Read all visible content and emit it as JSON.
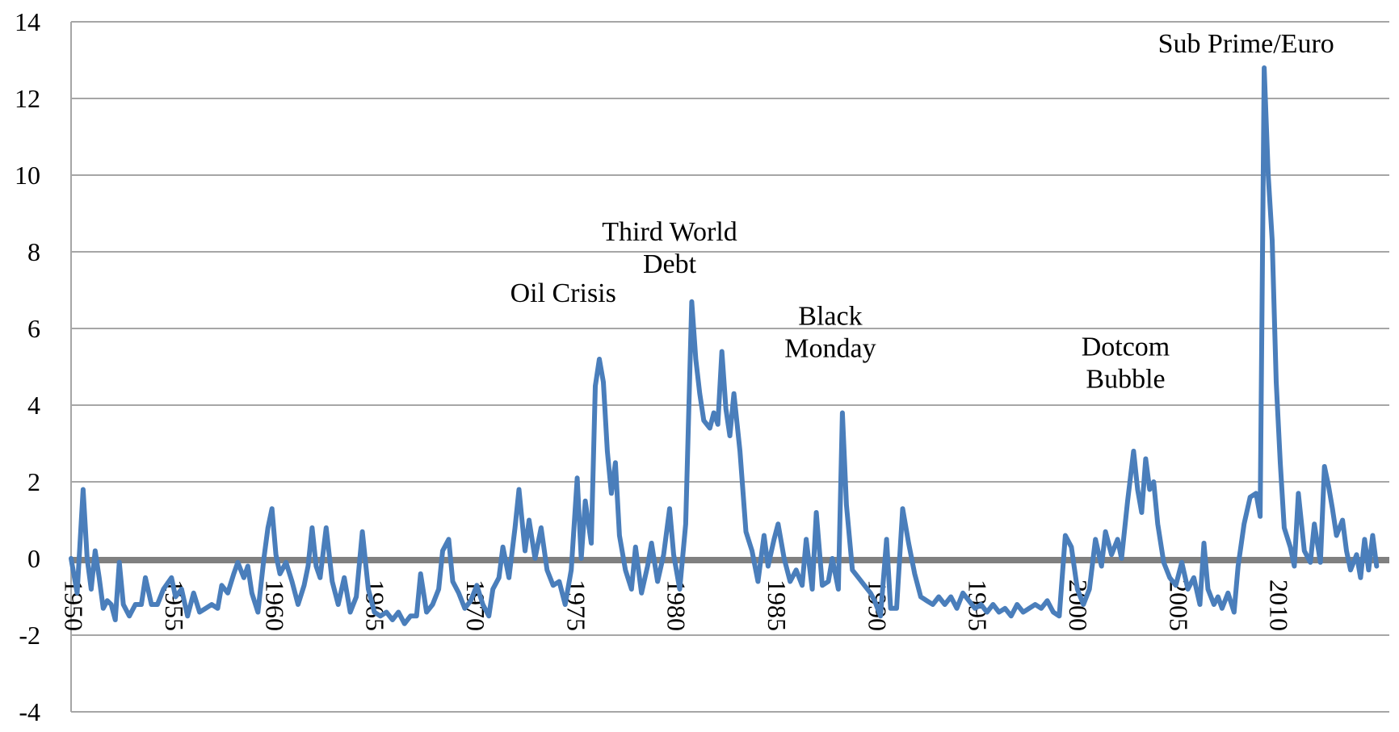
{
  "chart_data": {
    "type": "line",
    "title": "",
    "xlabel": "",
    "ylabel": "",
    "xlim": [
      1950,
      2015
    ],
    "ylim": [
      -4,
      14
    ],
    "grid": true,
    "legend": "none",
    "colors": {
      "series": "#4a7ebb",
      "zero_line": "#808080",
      "grid": "#a6a6a6"
    },
    "y_ticks": [
      "14",
      "12",
      "10",
      "8",
      "6",
      "4",
      "2",
      "0",
      "-2",
      "-4"
    ],
    "x_ticks": [
      "1950",
      "1955",
      "1960",
      "1965",
      "1970",
      "1975",
      "1980",
      "1985",
      "1990",
      "1995",
      "2000",
      "2005",
      "2010"
    ],
    "annotations": [
      {
        "lines": [
          "Oil Crisis"
        ],
        "x": 1974.5,
        "y": 6.7
      },
      {
        "lines": [
          "Third World",
          "Debt"
        ],
        "x": 1979.8,
        "y": 8.3
      },
      {
        "lines": [
          "Black",
          "Monday"
        ],
        "x": 1987.8,
        "y": 6.1
      },
      {
        "lines": [
          "Dotcom",
          "Bubble"
        ],
        "x": 2002.5,
        "y": 5.3
      },
      {
        "lines": [
          "Sub Prime/Euro"
        ],
        "x": 2008.5,
        "y": 13.2
      }
    ],
    "series": [
      {
        "values": [
          [
            1950.0,
            0.0
          ],
          [
            1950.3,
            -0.9
          ],
          [
            1950.6,
            1.8
          ],
          [
            1950.8,
            0.0
          ],
          [
            1951.0,
            -0.8
          ],
          [
            1951.2,
            0.2
          ],
          [
            1951.4,
            -0.5
          ],
          [
            1951.6,
            -1.3
          ],
          [
            1951.8,
            -1.1
          ],
          [
            1952.0,
            -1.2
          ],
          [
            1952.2,
            -1.6
          ],
          [
            1952.4,
            -0.1
          ],
          [
            1952.6,
            -1.2
          ],
          [
            1952.9,
            -1.5
          ],
          [
            1953.2,
            -1.2
          ],
          [
            1953.5,
            -1.2
          ],
          [
            1953.7,
            -0.5
          ],
          [
            1954.0,
            -1.2
          ],
          [
            1954.3,
            -1.2
          ],
          [
            1954.6,
            -0.8
          ],
          [
            1955.0,
            -0.5
          ],
          [
            1955.2,
            -1.0
          ],
          [
            1955.5,
            -0.8
          ],
          [
            1955.8,
            -1.5
          ],
          [
            1956.1,
            -0.9
          ],
          [
            1956.4,
            -1.4
          ],
          [
            1956.7,
            -1.3
          ],
          [
            1957.0,
            -1.2
          ],
          [
            1957.3,
            -1.3
          ],
          [
            1957.5,
            -0.7
          ],
          [
            1957.8,
            -0.9
          ],
          [
            1958.1,
            -0.4
          ],
          [
            1958.3,
            -0.1
          ],
          [
            1958.6,
            -0.5
          ],
          [
            1958.8,
            -0.2
          ],
          [
            1959.0,
            -0.9
          ],
          [
            1959.3,
            -1.4
          ],
          [
            1959.6,
            0.0
          ],
          [
            1959.8,
            0.8
          ],
          [
            1960.0,
            1.3
          ],
          [
            1960.2,
            0.1
          ],
          [
            1960.4,
            -0.4
          ],
          [
            1960.7,
            -0.1
          ],
          [
            1961.0,
            -0.6
          ],
          [
            1961.3,
            -1.2
          ],
          [
            1961.6,
            -0.7
          ],
          [
            1961.8,
            -0.2
          ],
          [
            1962.0,
            0.8
          ],
          [
            1962.2,
            -0.2
          ],
          [
            1962.4,
            -0.5
          ],
          [
            1962.7,
            0.8
          ],
          [
            1963.0,
            -0.6
          ],
          [
            1963.3,
            -1.2
          ],
          [
            1963.6,
            -0.5
          ],
          [
            1963.9,
            -1.4
          ],
          [
            1964.2,
            -1.0
          ],
          [
            1964.5,
            0.7
          ],
          [
            1964.8,
            -0.8
          ],
          [
            1965.1,
            -1.4
          ],
          [
            1965.4,
            -1.5
          ],
          [
            1965.7,
            -1.4
          ],
          [
            1966.0,
            -1.6
          ],
          [
            1966.3,
            -1.4
          ],
          [
            1966.6,
            -1.7
          ],
          [
            1966.9,
            -1.5
          ],
          [
            1967.2,
            -1.5
          ],
          [
            1967.4,
            -0.4
          ],
          [
            1967.7,
            -1.4
          ],
          [
            1968.0,
            -1.2
          ],
          [
            1968.3,
            -0.8
          ],
          [
            1968.5,
            0.2
          ],
          [
            1968.8,
            0.5
          ],
          [
            1969.0,
            -0.6
          ],
          [
            1969.3,
            -0.9
          ],
          [
            1969.6,
            -1.3
          ],
          [
            1969.9,
            -1.1
          ],
          [
            1970.2,
            -0.7
          ],
          [
            1970.5,
            -1.2
          ],
          [
            1970.8,
            -1.5
          ],
          [
            1971.0,
            -0.8
          ],
          [
            1971.3,
            -0.5
          ],
          [
            1971.5,
            0.3
          ],
          [
            1971.8,
            -0.5
          ],
          [
            1972.1,
            0.8
          ],
          [
            1972.3,
            1.8
          ],
          [
            1972.6,
            0.2
          ],
          [
            1972.8,
            1.0
          ],
          [
            1973.1,
            0.0
          ],
          [
            1973.4,
            0.8
          ],
          [
            1973.7,
            -0.3
          ],
          [
            1974.0,
            -0.7
          ],
          [
            1974.3,
            -0.6
          ],
          [
            1974.6,
            -1.2
          ],
          [
            1974.9,
            -0.3
          ],
          [
            1975.2,
            2.1
          ],
          [
            1975.4,
            0.0
          ],
          [
            1975.6,
            1.5
          ],
          [
            1975.9,
            0.4
          ],
          [
            1976.1,
            4.5
          ],
          [
            1976.3,
            5.2
          ],
          [
            1976.5,
            4.6
          ],
          [
            1976.7,
            2.8
          ],
          [
            1976.9,
            1.7
          ],
          [
            1977.1,
            2.5
          ],
          [
            1977.3,
            0.6
          ],
          [
            1977.6,
            -0.3
          ],
          [
            1977.9,
            -0.8
          ],
          [
            1978.1,
            0.3
          ],
          [
            1978.4,
            -0.9
          ],
          [
            1978.7,
            -0.2
          ],
          [
            1978.9,
            0.4
          ],
          [
            1979.2,
            -0.6
          ],
          [
            1979.5,
            0.1
          ],
          [
            1979.8,
            1.3
          ],
          [
            1980.0,
            0.1
          ],
          [
            1980.3,
            -0.8
          ],
          [
            1980.6,
            0.9
          ],
          [
            1980.9,
            6.7
          ],
          [
            1981.1,
            5.2
          ],
          [
            1981.3,
            4.3
          ],
          [
            1981.5,
            3.6
          ],
          [
            1981.8,
            3.4
          ],
          [
            1982.0,
            3.8
          ],
          [
            1982.2,
            3.5
          ],
          [
            1982.4,
            5.4
          ],
          [
            1982.6,
            3.9
          ],
          [
            1982.8,
            3.2
          ],
          [
            1983.0,
            4.3
          ],
          [
            1983.3,
            2.8
          ],
          [
            1983.6,
            0.7
          ],
          [
            1983.9,
            0.2
          ],
          [
            1984.2,
            -0.6
          ],
          [
            1984.5,
            0.6
          ],
          [
            1984.7,
            -0.2
          ],
          [
            1985.0,
            0.5
          ],
          [
            1985.2,
            0.9
          ],
          [
            1985.5,
            0.0
          ],
          [
            1985.8,
            -0.6
          ],
          [
            1986.1,
            -0.3
          ],
          [
            1986.4,
            -0.7
          ],
          [
            1986.6,
            0.5
          ],
          [
            1986.9,
            -0.8
          ],
          [
            1987.1,
            1.2
          ],
          [
            1987.4,
            -0.7
          ],
          [
            1987.7,
            -0.6
          ],
          [
            1987.9,
            0.0
          ],
          [
            1988.2,
            -0.8
          ],
          [
            1988.4,
            3.8
          ],
          [
            1988.6,
            1.4
          ],
          [
            1988.9,
            -0.3
          ],
          [
            1989.2,
            -0.5
          ],
          [
            1989.5,
            -0.7
          ],
          [
            1989.8,
            -0.9
          ],
          [
            1990.0,
            -1.1
          ],
          [
            1990.3,
            -1.5
          ],
          [
            1990.6,
            0.5
          ],
          [
            1990.8,
            -1.3
          ],
          [
            1991.1,
            -1.3
          ],
          [
            1991.4,
            1.3
          ],
          [
            1991.7,
            0.4
          ],
          [
            1992.0,
            -0.4
          ],
          [
            1992.3,
            -1.0
          ],
          [
            1992.6,
            -1.1
          ],
          [
            1992.9,
            -1.2
          ],
          [
            1993.2,
            -1.0
          ],
          [
            1993.5,
            -1.2
          ],
          [
            1993.8,
            -1.0
          ],
          [
            1994.1,
            -1.3
          ],
          [
            1994.4,
            -0.9
          ],
          [
            1994.7,
            -1.1
          ],
          [
            1995.0,
            -1.3
          ],
          [
            1995.3,
            -1.2
          ],
          [
            1995.6,
            -1.4
          ],
          [
            1995.9,
            -1.2
          ],
          [
            1996.2,
            -1.4
          ],
          [
            1996.5,
            -1.3
          ],
          [
            1996.8,
            -1.5
          ],
          [
            1997.1,
            -1.2
          ],
          [
            1997.4,
            -1.4
          ],
          [
            1997.7,
            -1.3
          ],
          [
            1998.0,
            -1.2
          ],
          [
            1998.3,
            -1.3
          ],
          [
            1998.6,
            -1.1
          ],
          [
            1998.9,
            -1.4
          ],
          [
            1999.2,
            -1.5
          ],
          [
            1999.5,
            0.6
          ],
          [
            1999.8,
            0.3
          ],
          [
            2000.1,
            -0.8
          ],
          [
            2000.4,
            -1.2
          ],
          [
            2000.7,
            -0.8
          ],
          [
            2001.0,
            0.5
          ],
          [
            2001.3,
            -0.2
          ],
          [
            2001.5,
            0.7
          ],
          [
            2001.8,
            0.1
          ],
          [
            2002.1,
            0.5
          ],
          [
            2002.3,
            0.0
          ],
          [
            2002.6,
            1.5
          ],
          [
            2002.9,
            2.8
          ],
          [
            2003.1,
            1.8
          ],
          [
            2003.3,
            1.2
          ],
          [
            2003.5,
            2.6
          ],
          [
            2003.7,
            1.8
          ],
          [
            2003.9,
            2.0
          ],
          [
            2004.1,
            0.9
          ],
          [
            2004.4,
            -0.1
          ],
          [
            2004.7,
            -0.5
          ],
          [
            2005.0,
            -0.7
          ],
          [
            2005.3,
            -0.1
          ],
          [
            2005.6,
            -0.8
          ],
          [
            2005.9,
            -0.5
          ],
          [
            2006.2,
            -1.2
          ],
          [
            2006.4,
            0.4
          ],
          [
            2006.6,
            -0.8
          ],
          [
            2006.9,
            -1.2
          ],
          [
            2007.1,
            -1.0
          ],
          [
            2007.3,
            -1.3
          ],
          [
            2007.6,
            -0.9
          ],
          [
            2007.9,
            -1.4
          ],
          [
            2008.1,
            -0.2
          ],
          [
            2008.4,
            0.9
          ],
          [
            2008.7,
            1.6
          ],
          [
            2009.0,
            1.7
          ],
          [
            2009.2,
            1.1
          ],
          [
            2009.4,
            12.8
          ],
          [
            2009.6,
            10.0
          ],
          [
            2009.8,
            8.3
          ],
          [
            2010.0,
            4.6
          ],
          [
            2010.2,
            2.5
          ],
          [
            2010.4,
            0.8
          ],
          [
            2010.7,
            0.3
          ],
          [
            2010.9,
            -0.2
          ],
          [
            2011.1,
            1.7
          ],
          [
            2011.4,
            0.2
          ],
          [
            2011.7,
            -0.1
          ],
          [
            2011.9,
            0.9
          ],
          [
            2012.2,
            -0.1
          ],
          [
            2012.4,
            2.4
          ],
          [
            2012.6,
            1.9
          ],
          [
            2012.8,
            1.3
          ],
          [
            2013.0,
            0.6
          ],
          [
            2013.3,
            1.0
          ],
          [
            2013.5,
            0.2
          ],
          [
            2013.7,
            -0.3
          ],
          [
            2014.0,
            0.1
          ],
          [
            2014.2,
            -0.5
          ],
          [
            2014.4,
            0.5
          ],
          [
            2014.6,
            -0.3
          ],
          [
            2014.8,
            0.6
          ],
          [
            2015.0,
            -0.2
          ]
        ]
      }
    ]
  }
}
